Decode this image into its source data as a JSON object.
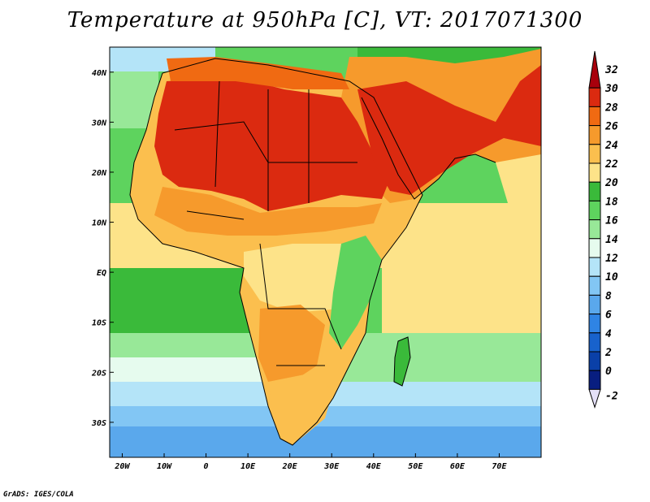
{
  "title": "Temperature at 950hPa [C], VT: 2017071300",
  "credit": "GrADS: IGES/COLA",
  "map": {
    "lon_range": [
      -23,
      80
    ],
    "lat_range": [
      -37,
      45
    ],
    "lat_ticks": [
      {
        "value": 40,
        "label": "40N"
      },
      {
        "value": 30,
        "label": "30N"
      },
      {
        "value": 20,
        "label": "20N"
      },
      {
        "value": 10,
        "label": "10N"
      },
      {
        "value": 0,
        "label": "EQ"
      },
      {
        "value": -10,
        "label": "10S"
      },
      {
        "value": -20,
        "label": "20S"
      },
      {
        "value": -30,
        "label": "30S"
      }
    ],
    "lon_ticks": [
      {
        "value": -20,
        "label": "20W"
      },
      {
        "value": -10,
        "label": "10W"
      },
      {
        "value": 0,
        "label": "0"
      },
      {
        "value": 10,
        "label": "10E"
      },
      {
        "value": 20,
        "label": "20E"
      },
      {
        "value": 30,
        "label": "30E"
      },
      {
        "value": 40,
        "label": "40E"
      },
      {
        "value": 50,
        "label": "50E"
      },
      {
        "value": 60,
        "label": "60E"
      },
      {
        "value": 70,
        "label": "70E"
      }
    ]
  },
  "colorbar": {
    "levels": [
      {
        "label": "32",
        "color": "#a8000c"
      },
      {
        "label": "30",
        "color": "#db2a10"
      },
      {
        "label": "28",
        "color": "#f06a12"
      },
      {
        "label": "26",
        "color": "#f69a2c"
      },
      {
        "label": "24",
        "color": "#fbbf4e"
      },
      {
        "label": "22",
        "color": "#fde389"
      },
      {
        "label": "20",
        "color": "#3aba3a"
      },
      {
        "label": "18",
        "color": "#5ed35e"
      },
      {
        "label": "16",
        "color": "#98e898"
      },
      {
        "label": "14",
        "color": "#e6fbee"
      },
      {
        "label": "12",
        "color": "#b4e4f8"
      },
      {
        "label": "10",
        "color": "#82c6f4"
      },
      {
        "label": "8",
        "color": "#5aa8ec"
      },
      {
        "label": "6",
        "color": "#2f84e4"
      },
      {
        "label": "4",
        "color": "#1862cc"
      },
      {
        "label": "2",
        "color": "#0a40a8"
      },
      {
        "label": "0",
        "color": "#081e80"
      },
      {
        "label": "-2",
        "color": "#e4e0f8"
      }
    ]
  }
}
